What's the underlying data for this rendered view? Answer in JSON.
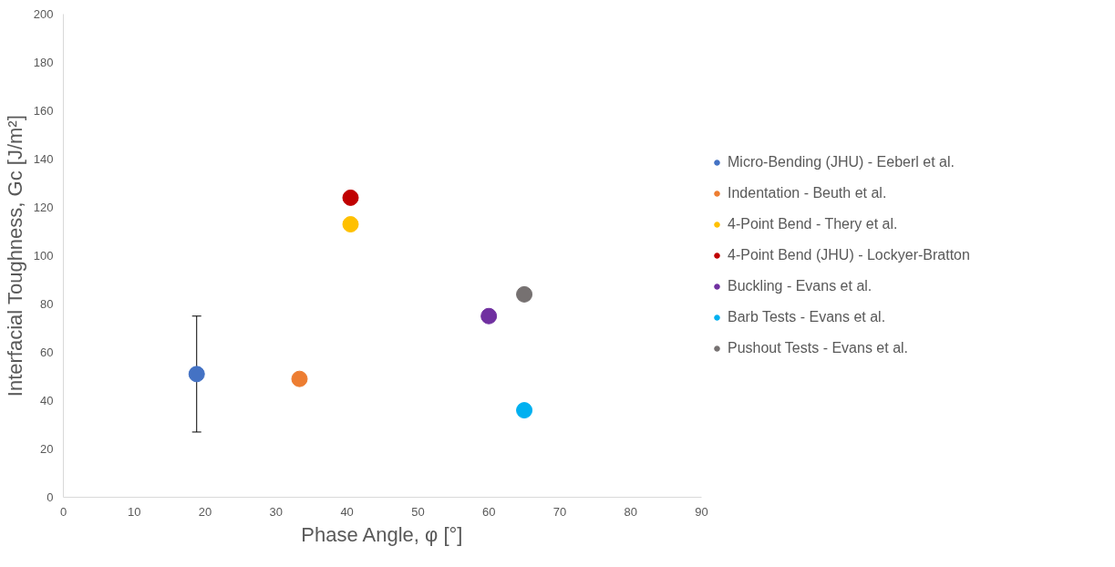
{
  "chart_data": {
    "type": "scatter",
    "xlabel": "Phase Angle, φ [°]",
    "ylabel": "Interfacial Toughness, Gc [J/m²]",
    "xlim": [
      0,
      90
    ],
    "xticks": [
      0,
      10,
      20,
      30,
      40,
      50,
      60,
      70,
      80,
      90
    ],
    "ylim": [
      0,
      200
    ],
    "yticks": [
      0,
      20,
      40,
      60,
      80,
      100,
      120,
      140,
      160,
      180,
      200
    ],
    "grid": false,
    "legend": "right",
    "marker": "circle",
    "series": [
      {
        "name": "Micro-Bending (JHU) - Eeberl et al.",
        "color": "#4472c4",
        "x": [
          18.8
        ],
        "values": [
          51
        ],
        "errors": [
          [
            27,
            75
          ]
        ]
      },
      {
        "name": "Indentation - Beuth et al.",
        "color": "#ed7d31",
        "x": [
          33.3
        ],
        "values": [
          49
        ]
      },
      {
        "name": "4-Point Bend - Thery et al.",
        "color": "#ffc000",
        "x": [
          40.5
        ],
        "values": [
          113
        ]
      },
      {
        "name": "4-Point Bend (JHU) - Lockyer-Bratton",
        "color": "#c00000",
        "x": [
          40.5
        ],
        "values": [
          124
        ]
      },
      {
        "name": "Buckling - Evans et al.",
        "color": "#7030a0",
        "x": [
          60
        ],
        "values": [
          75
        ]
      },
      {
        "name": "Barb Tests - Evans et al.",
        "color": "#00b0f0",
        "x": [
          65
        ],
        "values": [
          36
        ]
      },
      {
        "name": "Pushout Tests - Evans et al.",
        "color": "#767171",
        "x": [
          65
        ],
        "values": [
          84
        ]
      }
    ]
  }
}
